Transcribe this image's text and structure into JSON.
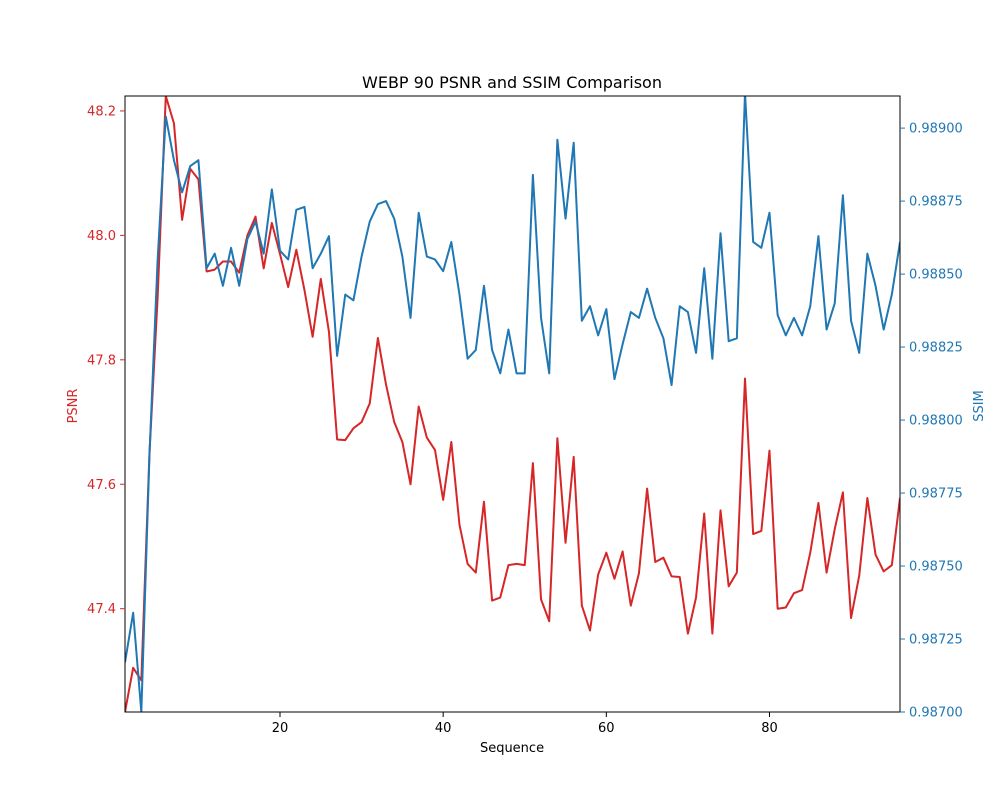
{
  "chart_data": {
    "type": "line",
    "title": "WEBP 90 PSNR and SSIM Comparison",
    "xlabel": "Sequence",
    "xlim": [
      1,
      96
    ],
    "x_ticks": [
      20,
      40,
      60,
      80
    ],
    "grid": false,
    "left_axis": {
      "label": "PSNR",
      "color": "#d62728",
      "ylim": [
        47.234,
        48.224
      ],
      "ticks": [
        "47.4",
        "47.6",
        "47.8",
        "48.0",
        "48.2"
      ]
    },
    "right_axis": {
      "label": "SSIM",
      "color": "#1f77b4",
      "ylim": [
        0.987,
        0.98911
      ],
      "ticks": [
        "0.98700",
        "0.98725",
        "0.98750",
        "0.98775",
        "0.98800",
        "0.98825",
        "0.98850",
        "0.98875",
        "0.98900"
      ]
    },
    "series": [
      {
        "axis": "left",
        "color": "#d62728",
        "x_start": 1,
        "values": [
          47.234,
          47.305,
          47.285,
          47.65,
          47.9,
          48.224,
          48.18,
          48.025,
          48.107,
          48.09,
          47.942,
          47.945,
          47.958,
          47.958,
          47.94,
          48.0,
          48.03,
          47.947,
          48.02,
          47.97,
          47.917,
          47.977,
          47.912,
          47.837,
          47.93,
          47.845,
          47.672,
          47.671,
          47.69,
          47.7,
          47.73,
          47.835,
          47.76,
          47.7,
          47.668,
          47.6,
          47.725,
          47.675,
          47.655,
          47.575,
          47.668,
          47.535,
          47.472,
          47.458,
          47.572,
          47.413,
          47.418,
          47.47,
          47.472,
          47.47,
          47.634,
          47.415,
          47.38,
          47.674,
          47.506,
          47.644,
          47.405,
          47.365,
          47.455,
          47.49,
          47.448,
          47.492,
          47.405,
          47.457,
          47.593,
          47.475,
          47.482,
          47.452,
          47.451,
          47.36,
          47.418,
          47.553,
          47.36,
          47.558,
          47.436,
          47.458,
          47.77,
          47.52,
          47.525,
          47.654,
          47.4,
          47.402,
          47.425,
          47.43,
          47.49,
          47.57,
          47.458,
          47.528,
          47.587,
          47.385,
          47.453,
          47.578,
          47.487,
          47.46,
          47.47,
          47.578
        ]
      },
      {
        "axis": "right",
        "color": "#1f77b4",
        "x_start": 1,
        "values": [
          0.98717,
          0.98734,
          0.987,
          0.98788,
          0.98855,
          0.98904,
          0.98889,
          0.98878,
          0.98887,
          0.98889,
          0.98852,
          0.98857,
          0.98846,
          0.98859,
          0.98846,
          0.98862,
          0.98868,
          0.98857,
          0.98879,
          0.98858,
          0.98855,
          0.98872,
          0.98873,
          0.98852,
          0.98857,
          0.98863,
          0.98822,
          0.98843,
          0.98841,
          0.98856,
          0.98868,
          0.98874,
          0.98875,
          0.98869,
          0.98856,
          0.98835,
          0.98871,
          0.98856,
          0.98855,
          0.98851,
          0.98861,
          0.98843,
          0.98821,
          0.98824,
          0.98846,
          0.98824,
          0.98816,
          0.98831,
          0.98816,
          0.98816,
          0.98884,
          0.98835,
          0.98816,
          0.98896,
          0.98869,
          0.98895,
          0.98834,
          0.98839,
          0.98829,
          0.98838,
          0.98814,
          0.98826,
          0.98837,
          0.98835,
          0.98845,
          0.98835,
          0.98828,
          0.98812,
          0.98839,
          0.98837,
          0.98823,
          0.98852,
          0.98821,
          0.98864,
          0.98827,
          0.98828,
          0.98912,
          0.98861,
          0.98859,
          0.98871,
          0.98836,
          0.98829,
          0.98835,
          0.98829,
          0.98839,
          0.98863,
          0.98831,
          0.9884,
          0.98877,
          0.98834,
          0.98823,
          0.98857,
          0.98846,
          0.98831,
          0.98843,
          0.98861
        ]
      }
    ]
  }
}
